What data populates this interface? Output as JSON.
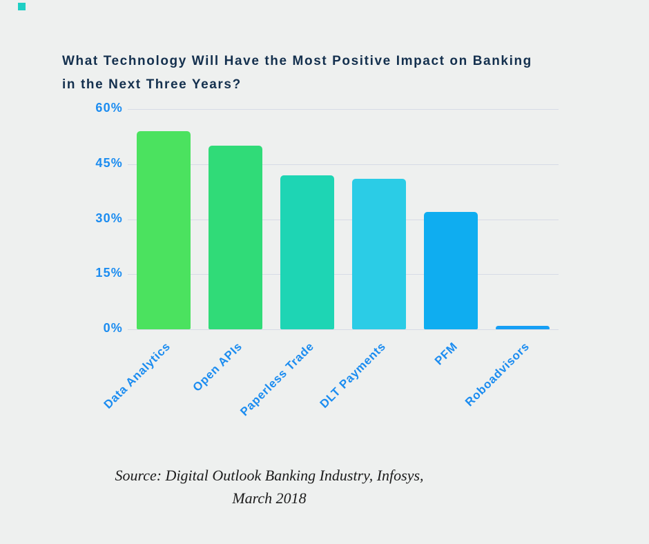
{
  "chart_data": {
    "type": "bar",
    "title": "What Technology Will Have the Most Positive Impact on Banking in the Next Three Years?",
    "title_lines": [
      "What Technology Will Have the Most Positive Impact on Banking",
      "in the Next Three Years?"
    ],
    "categories": [
      "Data Analytics",
      "Open APIs",
      "Paperless Trade",
      "DLT Payments",
      "PFM",
      "Roboadvisors"
    ],
    "values": [
      54,
      50,
      42,
      41,
      32,
      1
    ],
    "bar_colors": [
      "#4be25f",
      "#30db78",
      "#1ed5b4",
      "#2bcce6",
      "#0fadf0",
      "#169ff5"
    ],
    "xlabel": "",
    "ylabel": "",
    "ylim": [
      0,
      60
    ],
    "yticks": [
      0,
      15,
      30,
      45,
      60
    ],
    "ytick_labels": [
      "0%",
      "15%",
      "30%",
      "45%",
      "60%"
    ],
    "grid": true,
    "legend": "none"
  },
  "source": {
    "line1": "Source: Digital Outlook Banking Industry, Infosys,",
    "line2": "March  2018"
  },
  "colors": {
    "background": "#eef0ef",
    "title_text": "#14304e",
    "axis_text": "#1b8cf0",
    "gridline": "#d6dbe6",
    "corner_mark": "#1fcfc4"
  }
}
